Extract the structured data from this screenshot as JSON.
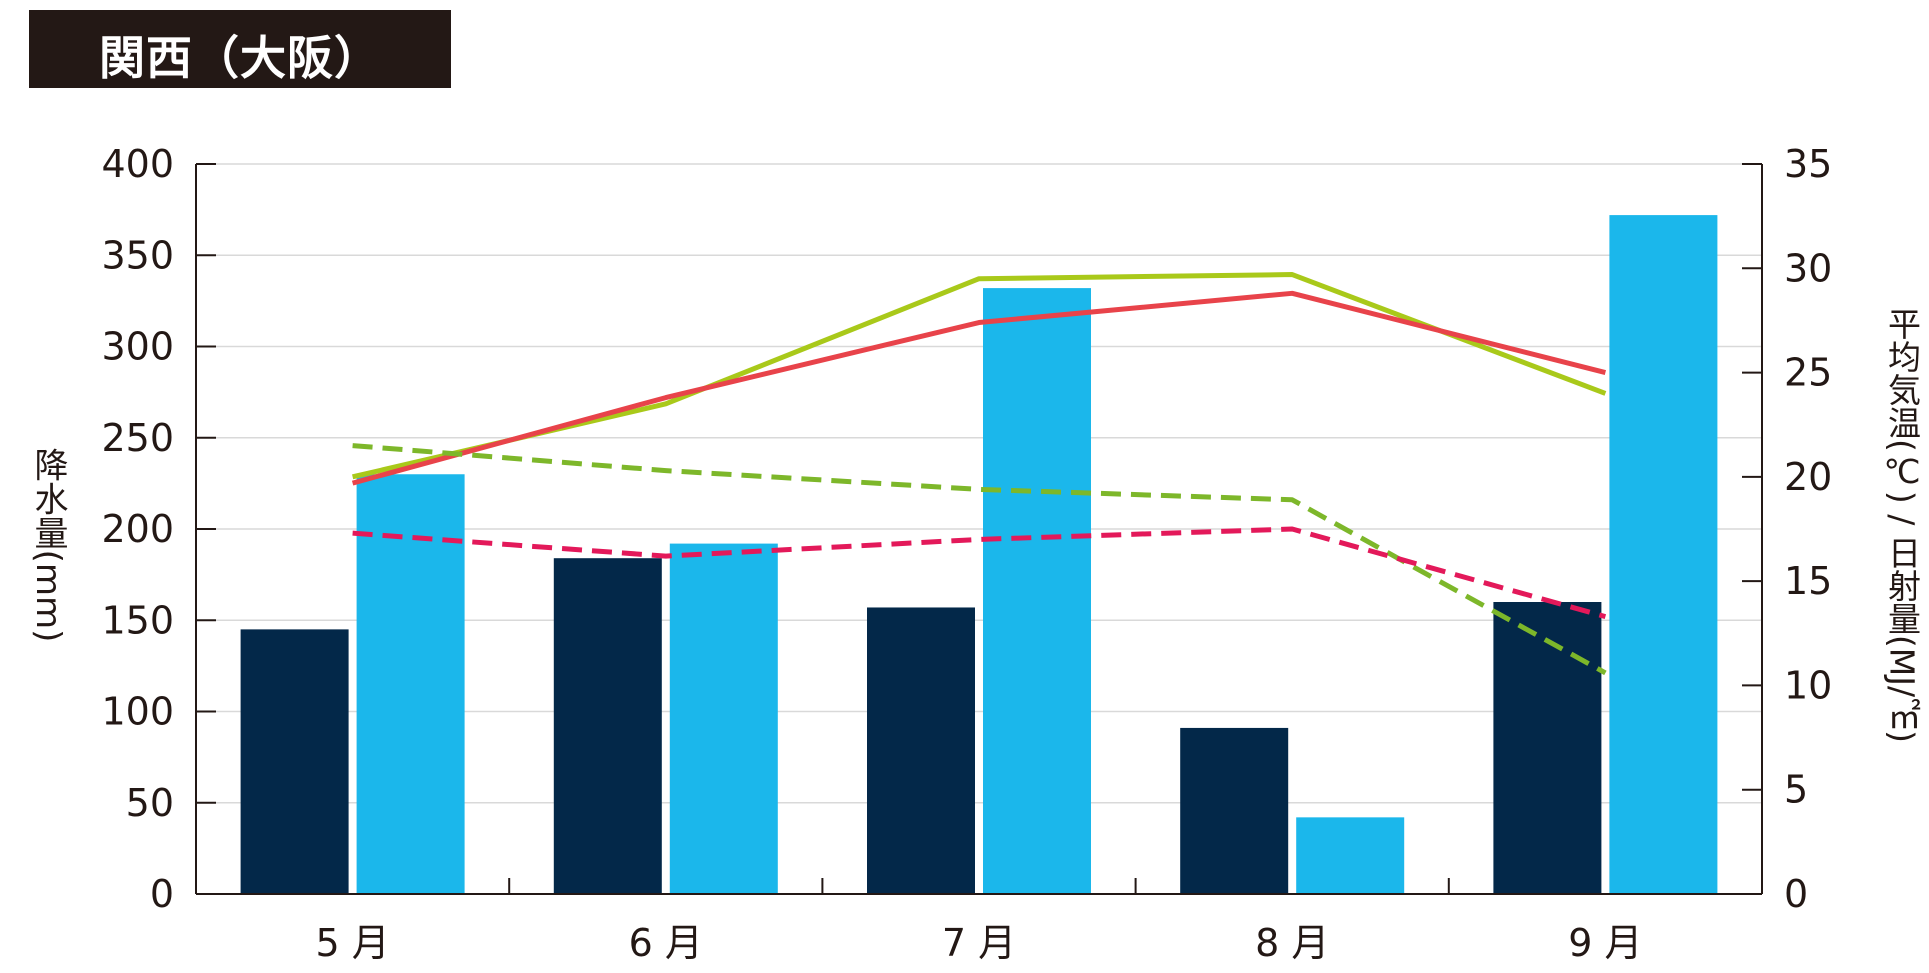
{
  "header": {
    "title": "関西（大阪）"
  },
  "colors": {
    "rain_this_year": "#032849",
    "rain_normal": "#1bb7eb",
    "temp_this_year": "#a9c91a",
    "temp_normal": "#e8434a",
    "solar_this_year": "#7db72a",
    "solar_normal": "#e3195a",
    "grid": "#d9d9d9",
    "axis": "#231815"
  },
  "chart_data": {
    "type": "bar",
    "categories": [
      "5 月",
      "6 月",
      "7 月",
      "8 月",
      "9 月"
    ],
    "ylabel": "降水量(mm)",
    "y2label": "平均気温(℃) / 日射量(MJ/㎡)",
    "ylim": [
      0,
      400
    ],
    "y2lim": [
      0,
      35
    ],
    "yticks": [
      "0",
      "50",
      "100",
      "150",
      "200",
      "250",
      "300",
      "350",
      "400"
    ],
    "y2ticks": [
      "0",
      "5",
      "10",
      "15",
      "20",
      "25",
      "30",
      "35"
    ],
    "grid": true,
    "bar_series": [
      {
        "values": [
          145,
          184,
          157,
          91,
          160
        ],
        "color_key": "rain_this_year"
      },
      {
        "values": [
          230,
          192,
          332,
          42,
          372
        ],
        "color_key": "rain_normal"
      }
    ],
    "line_series": [
      {
        "values": [
          20.0,
          23.5,
          29.5,
          29.7,
          24.0
        ],
        "color_key": "temp_this_year",
        "dashed": false
      },
      {
        "values": [
          19.7,
          23.8,
          27.4,
          28.8,
          25.0
        ],
        "color_key": "temp_normal",
        "dashed": false
      },
      {
        "values": [
          21.5,
          20.3,
          19.4,
          18.9,
          10.6
        ],
        "color_key": "solar_this_year",
        "dashed": true
      },
      {
        "values": [
          17.3,
          16.2,
          17.0,
          17.5,
          13.3
        ],
        "color_key": "solar_normal",
        "dashed": true
      }
    ]
  }
}
